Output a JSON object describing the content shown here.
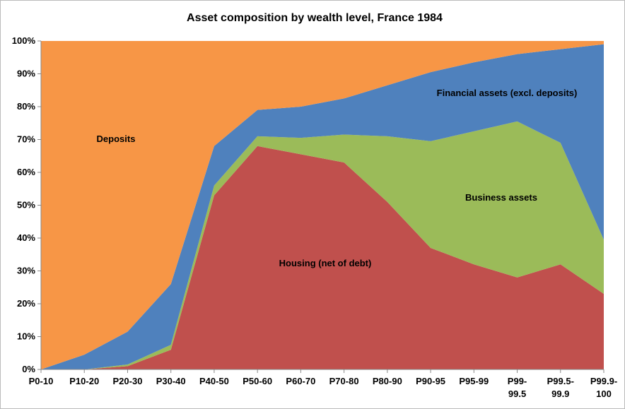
{
  "chart_data": {
    "type": "stacked-area",
    "title": "Asset composition by wealth level, France 1984",
    "categories": [
      "P0-10",
      "P10-20",
      "P20-30",
      "P30-40",
      "P40-50",
      "P50-60",
      "P60-70",
      "P70-80",
      "P80-90",
      "P90-95",
      "P95-99",
      "P99-99.5",
      "P99.5-99.9",
      "P99.9-100"
    ],
    "series": [
      {
        "name": "Housing (net of debt)",
        "color": "#c0504d",
        "values": [
          0,
          0,
          1,
          6,
          53,
          68,
          65.5,
          63,
          51,
          37,
          32,
          28,
          32,
          23
        ]
      },
      {
        "name": "Business assets",
        "color": "#9bbb59",
        "values": [
          0,
          0,
          0.5,
          1.5,
          3,
          3,
          5,
          8.5,
          20,
          32.5,
          40.5,
          47.5,
          37,
          16.5
        ]
      },
      {
        "name": "Financial assets  (excl. deposits)",
        "color": "#4f81bd",
        "values": [
          0,
          4.5,
          10,
          18.5,
          12,
          8,
          9.5,
          11,
          15.5,
          21,
          21,
          20.5,
          28.5,
          59.5
        ]
      },
      {
        "name": "Deposits",
        "color": "#f79646",
        "values": [
          100,
          95.5,
          88.5,
          74,
          32,
          21,
          20,
          17.5,
          13.5,
          9.5,
          6.5,
          4,
          2.5,
          1
        ]
      }
    ],
    "ylim": [
      0,
      100
    ],
    "yticks": [
      {
        "value": 0,
        "label": "0%"
      },
      {
        "value": 10,
        "label": "10%"
      },
      {
        "value": 20,
        "label": "20%"
      },
      {
        "value": 30,
        "label": "30%"
      },
      {
        "value": 40,
        "label": "40%"
      },
      {
        "value": 50,
        "label": "50%"
      },
      {
        "value": 60,
        "label": "60%"
      },
      {
        "value": 70,
        "label": "70%"
      },
      {
        "value": 80,
        "label": "80%"
      },
      {
        "value": 90,
        "label": "90%"
      },
      {
        "value": 100,
        "label": "100%"
      }
    ]
  }
}
